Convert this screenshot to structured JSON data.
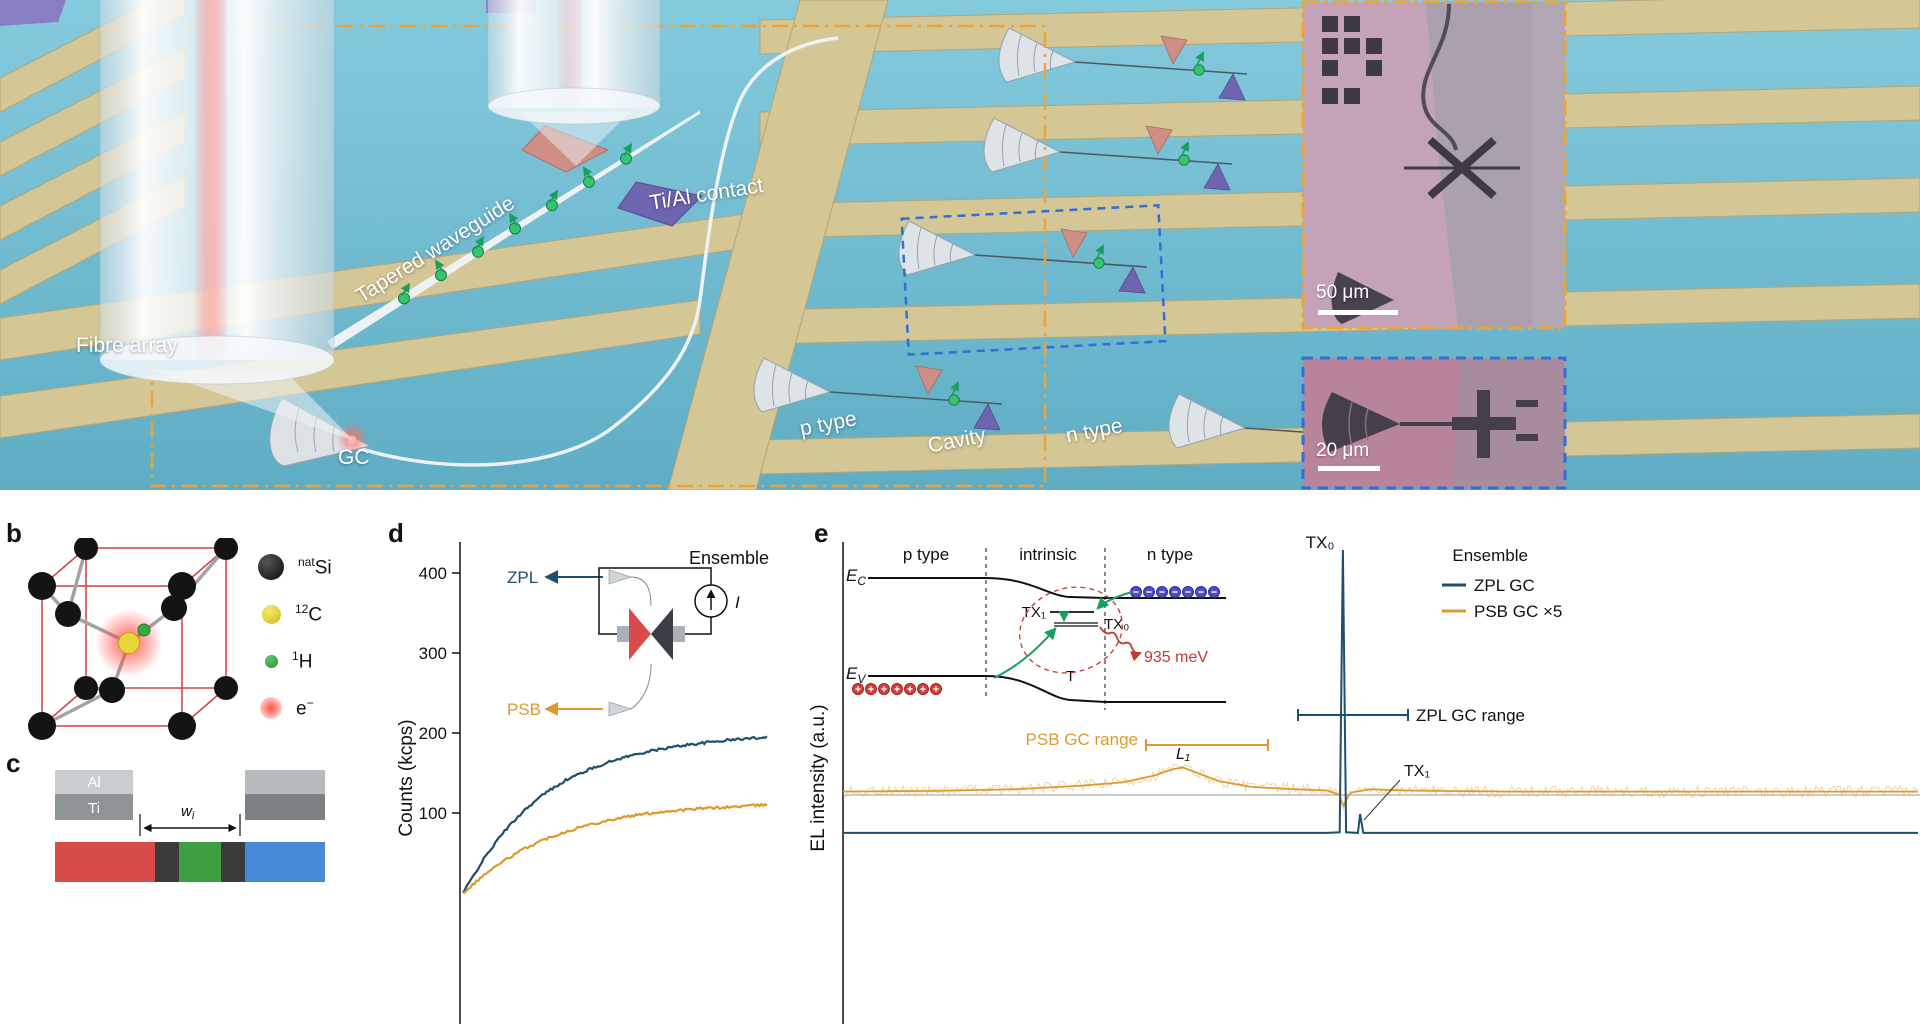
{
  "panel_a": {
    "labels": {
      "fibre_array": "Fibre array",
      "tapered_waveguide": "Tapered waveguide",
      "ti_al_contact": "Ti/Al contact",
      "gc": "GC",
      "p_type": "p type",
      "cavity": "Cavity",
      "n_type": "n type"
    },
    "inset_top": {
      "scale_label": "50 μm"
    },
    "inset_bottom": {
      "scale_label": "20 μm"
    }
  },
  "panel_b": {
    "label": "b",
    "legend": [
      {
        "pre_sup": "nat",
        "base": "Si",
        "post_sup": ""
      },
      {
        "pre_sup": "12",
        "base": "C",
        "post_sup": ""
      },
      {
        "pre_sup": "1",
        "base": "H",
        "post_sup": ""
      },
      {
        "pre_sup": "",
        "base": "e",
        "post_sup": "−"
      }
    ]
  },
  "panel_c": {
    "label": "c",
    "al": "Al",
    "ti": "Ti",
    "width_base": "w",
    "width_sub": "i"
  },
  "panel_d": {
    "label": "d",
    "ylabel": "Counts (kcps)",
    "annotation": "Ensemble",
    "zpl": "ZPL",
    "psb": "PSB",
    "current": "I"
  },
  "panel_e": {
    "label": "e",
    "ylabel": "EL intensity (a.u.)",
    "region_p": "p type",
    "region_i": "intrinsic",
    "region_n": "n type",
    "ec_base": "E",
    "ec_sub": "C",
    "ev_base": "E",
    "ev_sub": "V",
    "tx1_level": "TX₁",
    "tx0_level": "TX₀",
    "t_label": "T",
    "photon": "935 meV",
    "psb_range": "PSB GC range",
    "zpl_range": "ZPL GC range",
    "tx0_peak": "TX₀",
    "tx1_peak": "TX₁",
    "l1_peak": "L₁",
    "legend_title": "Ensemble",
    "legend_zpl": "ZPL GC",
    "legend_psb": "PSB GC ×5"
  },
  "chart_data": [
    {
      "id": "d",
      "type": "line",
      "title": "",
      "xlabel": "",
      "ylabel": "Counts (kcps)",
      "ylim": [
        0,
        430
      ],
      "yticks": [
        400,
        300,
        200,
        100
      ],
      "annotation": "Ensemble",
      "series": [
        {
          "name": "ZPL",
          "color": "#1d4f6e",
          "x": [
            0,
            0.067,
            0.133,
            0.2,
            0.267,
            0.333,
            0.4,
            0.467,
            0.533,
            0.6,
            0.667,
            0.733,
            0.8,
            0.867,
            0.933,
            1
          ],
          "y": [
            0,
            42,
            76,
            103,
            124,
            140,
            152,
            162,
            170,
            176,
            181,
            185,
            188,
            191,
            193,
            195
          ]
        },
        {
          "name": "PSB",
          "color": "#dd9a2c",
          "x": [
            0,
            0.067,
            0.133,
            0.2,
            0.267,
            0.333,
            0.4,
            0.467,
            0.533,
            0.6,
            0.667,
            0.733,
            0.8,
            0.867,
            0.933,
            1
          ],
          "y": [
            0,
            22,
            40,
            55,
            67,
            76,
            84,
            90,
            95,
            99,
            102,
            104,
            106,
            107,
            109,
            110
          ]
        }
      ]
    },
    {
      "id": "e",
      "type": "line",
      "ylabel": "EL intensity (a.u.)",
      "series_labels": [
        "ZPL GC",
        "PSB GC ×5"
      ],
      "peaks": {
        "tx0_x": 0.465,
        "tx1_x": 0.481,
        "l1_x": 0.316
      },
      "psb_profile": [
        [
          0,
          0.03
        ],
        [
          0.08,
          0.035
        ],
        [
          0.16,
          0.05
        ],
        [
          0.22,
          0.08
        ],
        [
          0.26,
          0.11
        ],
        [
          0.29,
          0.17
        ],
        [
          0.305,
          0.22
        ],
        [
          0.316,
          0.24
        ],
        [
          0.33,
          0.19
        ],
        [
          0.35,
          0.12
        ],
        [
          0.38,
          0.07
        ],
        [
          0.42,
          0.05
        ],
        [
          0.45,
          0.04
        ],
        [
          0.462,
          0.0
        ],
        [
          0.465,
          -0.1
        ],
        [
          0.472,
          0.02
        ],
        [
          0.49,
          0.05
        ],
        [
          0.52,
          0.04
        ],
        [
          0.56,
          0.035
        ],
        [
          0.62,
          0.03
        ],
        [
          0.7,
          0.03
        ],
        [
          0.8,
          0.03
        ],
        [
          0.9,
          0.03
        ],
        [
          1,
          0.03
        ]
      ],
      "psb_noise": 0.05,
      "zpl_profile": [
        [
          0,
          0.004
        ],
        [
          0.45,
          0.004
        ],
        [
          0.462,
          0.006
        ],
        [
          0.465,
          1.0
        ],
        [
          0.468,
          0.006
        ],
        [
          0.479,
          0.004
        ],
        [
          0.481,
          0.07
        ],
        [
          0.484,
          0.004
        ],
        [
          1,
          0.004
        ]
      ],
      "colors": {
        "zpl": "#1d4f6e",
        "psb": "#dd9a2c",
        "psb_noisy": "rgba(233,176,84,0.55)"
      }
    }
  ]
}
